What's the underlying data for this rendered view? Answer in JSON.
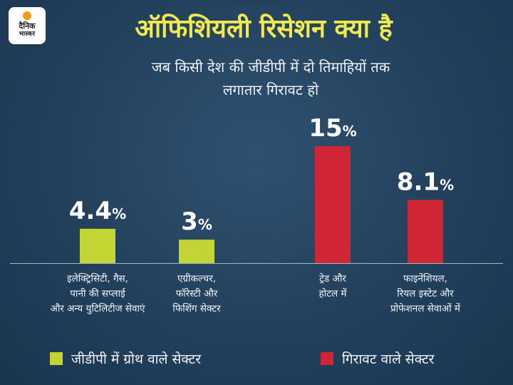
{
  "brand": {
    "line1": "दैनिक",
    "line2": "भास्कर"
  },
  "title": "ऑफिशियली रिसेशन क्या है",
  "subtitle": [
    "जब किसी देश की जीडीपी में दो तिमाहियों तक",
    "लगातार गिरावट हो"
  ],
  "colors": {
    "growth": "#c3d532",
    "decline": "#d02535",
    "title": "#f2e94e",
    "baseline": "#a9b6c4"
  },
  "chart_data": {
    "type": "bar",
    "title": "ऑफिशियली रिसेशन क्या है",
    "unit": "%",
    "ylim": [
      0,
      15
    ],
    "categories": [
      [
        "इलेक्ट्रिसिटी, गैस,",
        "पानी की सप्लाई",
        "और अन्य युटिलिटीज सेवाएं"
      ],
      [
        "एग्रीकल्चर,",
        "फॉरेस्टी और",
        "फिशिंग सेक्टर"
      ],
      [
        "ट्रेड और",
        "होटल में"
      ],
      [
        "फाइनेंशियल,",
        "रियल इस्टेट और",
        "प्रोफेशनल सेवाओं में"
      ]
    ],
    "values": [
      4.4,
      3,
      15,
      8.1
    ],
    "value_labels": [
      "4.4",
      "3",
      "15",
      "8.1"
    ],
    "groups": [
      "growth",
      "growth",
      "decline",
      "decline"
    ],
    "legend": [
      {
        "key": "growth",
        "label": "जीडीपी में ग्रोथ वाले सेक्टर"
      },
      {
        "key": "decline",
        "label": "गिरावट वाले सेक्टर"
      }
    ],
    "legend_position": "bottom",
    "grid": false
  }
}
